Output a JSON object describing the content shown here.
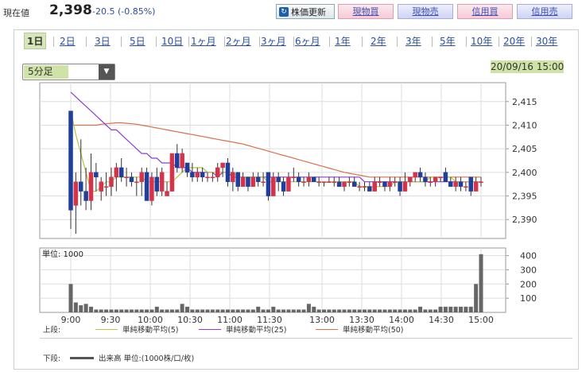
{
  "header": {
    "price_label": "現在値",
    "price": "2,398",
    "change": "-20.5 (-0.85%)",
    "refresh_label": "株価更新",
    "buttons": [
      "現物買",
      "現物売",
      "信用買",
      "信用売"
    ]
  },
  "tabs": [
    "1日",
    "2日",
    "3日",
    "5日",
    "10日",
    "1ヶ月",
    "2ヶ月",
    "3ヶ月",
    "6ヶ月",
    "1年",
    "2年",
    "3年",
    "5年",
    "10年",
    "20年",
    "30年"
  ],
  "selected_tab": "1日",
  "interval_select": "5分足",
  "datetime": "20/09/16 15:00",
  "legend": {
    "upper_label": "上段:",
    "lower_label": "下段:",
    "ma5": "単純移動平均(5)",
    "ma25": "単純移動平均(25)",
    "ma50": "単純移動平均(50)",
    "volume": "出来高 単位:(1000株/口/枚)"
  },
  "colors": {
    "up": "#d6334a",
    "down": "#1f3f9a",
    "ma5": "#b8c44a",
    "ma25": "#8a3fd0",
    "ma50": "#d9704a",
    "volume": "#666666",
    "highlight": "#cfe3a8"
  },
  "chart_data": [
    {
      "type": "candlestick",
      "ylim": [
        2386,
        2419
      ],
      "yticks": [
        "2,390",
        "2,395",
        "2,400",
        "2,405",
        "2,410",
        "2,415"
      ],
      "xticks": [
        "9:00",
        "9:30",
        "10:00",
        "10:30",
        "11:00",
        "11:30",
        "13:00",
        "13:30",
        "14:00",
        "14:30",
        "15:00"
      ],
      "ohlc": [
        [
          2413,
          2413,
          2388,
          2392
        ],
        [
          2393,
          2400,
          2387,
          2398
        ],
        [
          2398,
          2407,
          2393,
          2396
        ],
        [
          2396,
          2401,
          2392,
          2394
        ],
        [
          2394,
          2404,
          2392,
          2400
        ],
        [
          2400,
          2402,
          2396,
          2399
        ],
        [
          2396,
          2399,
          2394,
          2398
        ],
        [
          2397,
          2400,
          2395,
          2397
        ],
        [
          2397,
          2401,
          2395,
          2399
        ],
        [
          2399,
          2402,
          2396,
          2401
        ],
        [
          2401,
          2403,
          2398,
          2399
        ],
        [
          2399,
          2401,
          2397,
          2399
        ],
        [
          2399,
          2400,
          2397,
          2398
        ],
        [
          2398,
          2399,
          2395,
          2398
        ],
        [
          2398,
          2401,
          2395,
          2400
        ],
        [
          2400,
          2401,
          2394,
          2394
        ],
        [
          2394,
          2400,
          2393,
          2399
        ],
        [
          2399,
          2401,
          2395,
          2396
        ],
        [
          2396,
          2401,
          2395,
          2400
        ],
        [
          2395,
          2398,
          2395,
          2396
        ],
        [
          2396,
          2404,
          2396,
          2404
        ],
        [
          2404,
          2406,
          2400,
          2401
        ],
        [
          2401,
          2405,
          2400,
          2404
        ],
        [
          2402,
          2402,
          2399,
          2400
        ],
        [
          2400,
          2402,
          2398,
          2399
        ],
        [
          2399,
          2401,
          2398,
          2400
        ],
        [
          2400,
          2401,
          2398,
          2399
        ],
        [
          2399,
          2400,
          2398,
          2399
        ],
        [
          2399,
          2400,
          2398,
          2399
        ],
        [
          2399,
          2402,
          2398,
          2401
        ],
        [
          2401,
          2402,
          2399,
          2402
        ],
        [
          2402,
          2403,
          2397,
          2398
        ],
        [
          2398,
          2401,
          2396,
          2400
        ],
        [
          2400,
          2400,
          2396,
          2397
        ],
        [
          2397,
          2400,
          2397,
          2399
        ],
        [
          2399,
          2399,
          2396,
          2397
        ],
        [
          2397,
          2400,
          2397,
          2399
        ],
        [
          2399,
          2400,
          2397,
          2398
        ],
        [
          2398,
          2400,
          2397,
          2398
        ],
        [
          2400,
          2400,
          2394,
          2395
        ],
        [
          2395,
          2400,
          2395,
          2399
        ],
        [
          2399,
          2400,
          2396,
          2398
        ],
        [
          2398,
          2399,
          2395,
          2396
        ],
        [
          2396,
          2400,
          2396,
          2399
        ],
        [
          2399,
          2401,
          2398,
          2399
        ],
        [
          2399,
          2400,
          2397,
          2398
        ],
        [
          2398,
          2399,
          2397,
          2398
        ],
        [
          2398,
          2400,
          2397,
          2399
        ],
        [
          2399,
          2399,
          2398,
          2398
        ],
        [
          2398,
          2399,
          2397,
          2398
        ],
        [
          2398,
          2398,
          2397,
          2398
        ],
        [
          2398,
          2399,
          2398,
          2398
        ],
        [
          2398,
          2399,
          2397,
          2398
        ],
        [
          2398,
          2399,
          2397,
          2397
        ],
        [
          2397,
          2398,
          2396,
          2398
        ],
        [
          2398,
          2399,
          2397,
          2398
        ],
        [
          2398,
          2399,
          2397,
          2397
        ],
        [
          2397,
          2398,
          2396,
          2397
        ],
        [
          2397,
          2398,
          2396,
          2397
        ],
        [
          2397,
          2398,
          2396,
          2396
        ],
        [
          2396,
          2399,
          2396,
          2398
        ],
        [
          2398,
          2399,
          2397,
          2398
        ],
        [
          2398,
          2398,
          2396,
          2397
        ],
        [
          2397,
          2399,
          2396,
          2398
        ],
        [
          2398,
          2399,
          2397,
          2398
        ],
        [
          2398,
          2399,
          2395,
          2396
        ],
        [
          2396,
          2400,
          2396,
          2398
        ],
        [
          2398,
          2399,
          2397,
          2399
        ],
        [
          2399,
          2400,
          2398,
          2400
        ],
        [
          2400,
          2401,
          2398,
          2399
        ],
        [
          2399,
          2400,
          2397,
          2398
        ],
        [
          2398,
          2399,
          2397,
          2398
        ],
        [
          2398,
          2399,
          2397,
          2399
        ],
        [
          2399,
          2399,
          2398,
          2399
        ],
        [
          2400,
          2401,
          2398,
          2398
        ],
        [
          2398,
          2399,
          2397,
          2397
        ],
        [
          2397,
          2399,
          2396,
          2398
        ],
        [
          2398,
          2399,
          2396,
          2397
        ],
        [
          2397,
          2398,
          2396,
          2397
        ],
        [
          2399,
          2399,
          2395,
          2396
        ],
        [
          2396,
          2399,
          2396,
          2398
        ],
        [
          2398,
          2399,
          2397,
          2398
        ]
      ],
      "ma5": [
        2413,
        2408,
        2404,
        2400,
        2396,
        2396,
        2397,
        2398,
        2398,
        2399,
        2399,
        2399,
        2399,
        2399,
        2399,
        2398,
        2398,
        2398,
        2398,
        2398,
        2398,
        2399,
        2400,
        2401,
        2401,
        2401,
        2401,
        2400,
        2400,
        2400,
        2400,
        2400,
        2400,
        2399,
        2399,
        2399,
        2399,
        2399,
        2399,
        2398,
        2398,
        2398,
        2398,
        2398,
        2398,
        2398,
        2398,
        2398,
        2398,
        2398,
        2398,
        2398,
        2398,
        2398,
        2398,
        2398,
        2398,
        2397,
        2397,
        2397,
        2397,
        2397,
        2397,
        2397,
        2398,
        2398,
        2398,
        2398,
        2398,
        2398,
        2398,
        2399,
        2399,
        2399,
        2399,
        2399,
        2398,
        2398,
        2398,
        2398,
        2398,
        2398
      ],
      "ma25": [
        2417,
        2416,
        2415,
        2414,
        2413,
        2412,
        2411,
        2410,
        2409,
        2409,
        2408,
        2407,
        2406,
        2405,
        2404,
        2404,
        2403,
        2403,
        2402,
        2402,
        2402,
        2401,
        2401,
        2401,
        2400,
        2400,
        2400,
        2400,
        2400,
        2399,
        2400,
        2400,
        2399,
        2399,
        2399,
        2399,
        2399,
        2399,
        2399,
        2399,
        2399,
        2399,
        2399,
        2399,
        2399,
        2399,
        2399,
        2399,
        2399,
        2399,
        2399,
        2399,
        2399,
        2399,
        2399,
        2399,
        2399,
        2399,
        2398,
        2398,
        2398,
        2398,
        2398,
        2398,
        2398,
        2398,
        2398,
        2398,
        2398,
        2398,
        2398,
        2398,
        2398,
        2398,
        2398,
        2398,
        2398,
        2398,
        2398,
        2398,
        2398,
        2398
      ],
      "ma50": [
        2410,
        2410,
        2410,
        2410,
        2410,
        2410,
        2410.2,
        2410.3,
        2410.4,
        2410.5,
        2410.5,
        2410.4,
        2410.3,
        2410.2,
        2410,
        2409.8,
        2409.6,
        2409.4,
        2409.2,
        2409,
        2408.8,
        2408.6,
        2408.4,
        2408.2,
        2408,
        2407.8,
        2407.6,
        2407.4,
        2407.2,
        2407,
        2406.8,
        2406.6,
        2406.4,
        2406.2,
        2406,
        2405.7,
        2405.4,
        2405.1,
        2404.8,
        2404.5,
        2404.2,
        2403.9,
        2403.6,
        2403.3,
        2403,
        2402.7,
        2402.4,
        2402.1,
        2401.8,
        2401.5,
        2401.2,
        2400.9,
        2400.6,
        2400.3,
        2400,
        2399.8,
        2399.6,
        2399.4,
        2399.2,
        2399,
        2399,
        2399,
        2399,
        2399,
        2399,
        2399,
        2399,
        2399,
        2399,
        2399,
        2399,
        2399,
        2399,
        2399,
        2399,
        2399,
        2399,
        2399,
        2399,
        2399,
        2399,
        2399
      ]
    },
    {
      "type": "bar",
      "unit_label": "単位: 1000",
      "ylim": [
        0,
        420
      ],
      "yticks": [
        "100",
        "200",
        "300",
        "400"
      ],
      "values": [
        200,
        70,
        50,
        60,
        40,
        20,
        20,
        20,
        20,
        20,
        20,
        20,
        20,
        20,
        20,
        20,
        20,
        40,
        20,
        20,
        20,
        20,
        60,
        40,
        20,
        20,
        20,
        20,
        20,
        20,
        20,
        20,
        20,
        20,
        20,
        20,
        20,
        40,
        20,
        20,
        40,
        20,
        20,
        20,
        20,
        20,
        20,
        60,
        40,
        20,
        20,
        20,
        20,
        20,
        20,
        20,
        20,
        20,
        20,
        20,
        20,
        20,
        20,
        20,
        20,
        20,
        20,
        20,
        20,
        40,
        20,
        20,
        20,
        40,
        40,
        40,
        40,
        40,
        40,
        40,
        200,
        410
      ]
    }
  ]
}
